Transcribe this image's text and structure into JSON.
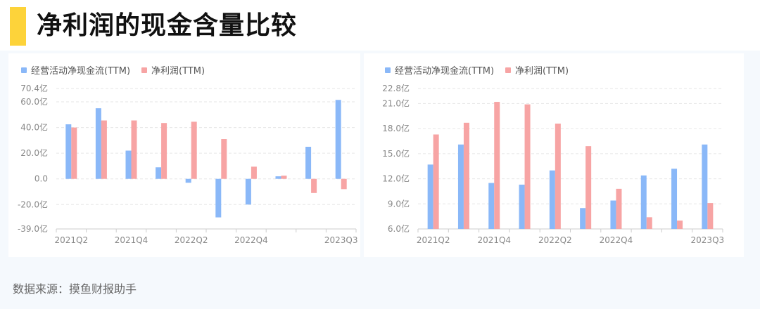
{
  "title": "净利润的现金含量比较",
  "source": "数据来源：摸鱼财报助手",
  "colors": {
    "cash": "#8ab8f8",
    "profit": "#f7a4a4",
    "accent": "#fdd33a"
  },
  "chart_data": [
    {
      "type": "bar",
      "legend_position": "top-left",
      "series": [
        {
          "name": "经营活动净现金流(TTM)",
          "values": [
            42.5,
            55.0,
            22.0,
            9.0,
            -3.0,
            -30.0,
            -20.0,
            2.0,
            25.0,
            61.5
          ]
        },
        {
          "name": "净利润(TTM)",
          "values": [
            40.0,
            45.5,
            45.5,
            43.5,
            44.5,
            31.0,
            9.5,
            2.5,
            -11.0,
            -8.0
          ]
        }
      ],
      "x_tick_labels": [
        "2021Q2",
        "2021Q4",
        "2022Q2",
        "2022Q4",
        "2023Q3"
      ],
      "y_ticks": [
        "70.4亿",
        "60.0亿",
        "40.0亿",
        "20.0亿",
        "0.0",
        "-20.0亿",
        "-39.0亿"
      ],
      "y_tick_values": [
        70.4,
        60,
        40,
        20,
        0,
        -20,
        -39
      ],
      "ylim": [
        -39.0,
        70.4
      ],
      "grid": true
    },
    {
      "type": "bar",
      "legend_position": "top-left",
      "series": [
        {
          "name": "经营活动净现金流(TTM)",
          "values": [
            13.7,
            16.1,
            11.5,
            11.3,
            13.0,
            8.5,
            9.4,
            12.4,
            13.2,
            16.1
          ]
        },
        {
          "name": "净利润(TTM)",
          "values": [
            17.3,
            18.7,
            21.2,
            20.9,
            18.6,
            15.9,
            10.8,
            7.4,
            7.0,
            9.1
          ]
        }
      ],
      "x_tick_labels": [
        "2021Q2",
        "2021Q4",
        "2022Q2",
        "2022Q4",
        "2023Q3"
      ],
      "y_ticks": [
        "22.8亿",
        "21.0亿",
        "18.0亿",
        "15.0亿",
        "12.0亿",
        "9.0亿",
        "6.0亿"
      ],
      "y_tick_values": [
        22.8,
        21,
        18,
        15,
        12,
        9,
        6
      ],
      "ylim": [
        6.0,
        22.8
      ],
      "grid": true
    }
  ]
}
